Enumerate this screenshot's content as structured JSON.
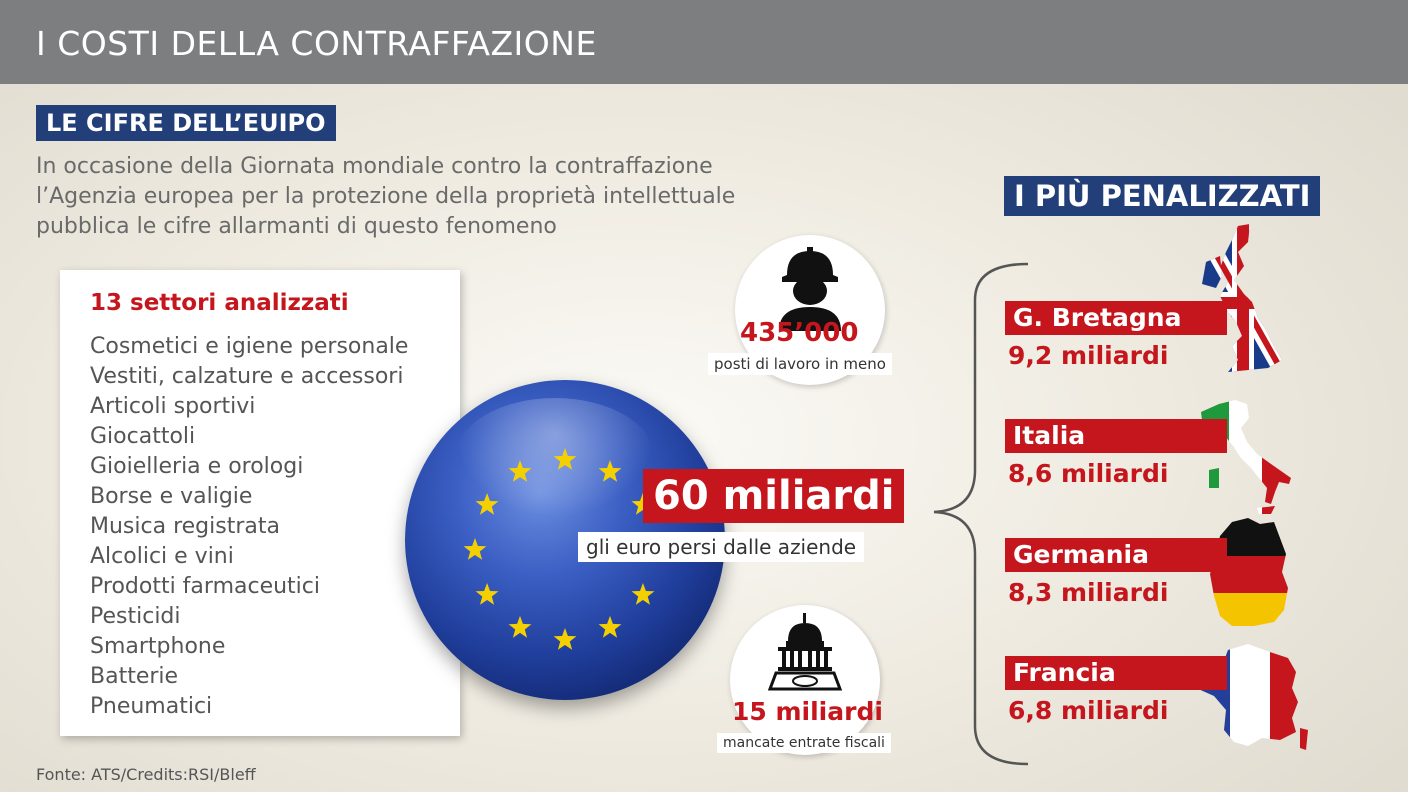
{
  "header": {
    "title": "I COSTI DELLA CONTRAFFAZIONE"
  },
  "subtitle_tag": "LE CIFRE DELL’EUIPO",
  "intro_lines": [
    "In occasione della Giornata mondiale contro la contraffazione",
    "l’Agenzia europea per la protezione della proprietà intellettuale",
    "pubblica le cifre allarmanti di questo fenomeno"
  ],
  "sectors": {
    "title": "13 settori analizzati",
    "items": [
      "Cosmetici e igiene personale",
      "Vestiti, calzature e accessori",
      "Articoli sportivi",
      "Giocattoli",
      "Gioielleria e orologi",
      "Borse e valigie",
      "Musica registrata",
      "Alcolici e vini",
      "Prodotti farmaceutici",
      "Pesticidi",
      "Smartphone",
      "Batterie",
      "Pneumatici"
    ]
  },
  "jobs": {
    "value": "435’000",
    "label": "posti di lavoro in meno",
    "icon": "worker-icon"
  },
  "total": {
    "value": "60 miliardi",
    "label": "gli euro persi dalle aziende"
  },
  "tax": {
    "value": "15 miliardi",
    "label": "mancate entrate fiscali",
    "icon": "government-building-icon"
  },
  "most_affected": {
    "title": "I PIÙ PENALIZZATI",
    "countries": [
      {
        "name": "G. Bretagna",
        "amount": "9,2 miliardi"
      },
      {
        "name": "Italia",
        "amount": "8,6 miliardi"
      },
      {
        "name": "Germania",
        "amount": "8,3 miliardi"
      },
      {
        "name": "Francia",
        "amount": "6,8 miliardi"
      }
    ]
  },
  "colors": {
    "header_bg": "#7d7e80",
    "accent_red": "#c4161c",
    "accent_blue": "#233f7a",
    "star_yellow": "#f5d000"
  },
  "source": "Fonte: ATS/Credits:RSI/Bleff"
}
